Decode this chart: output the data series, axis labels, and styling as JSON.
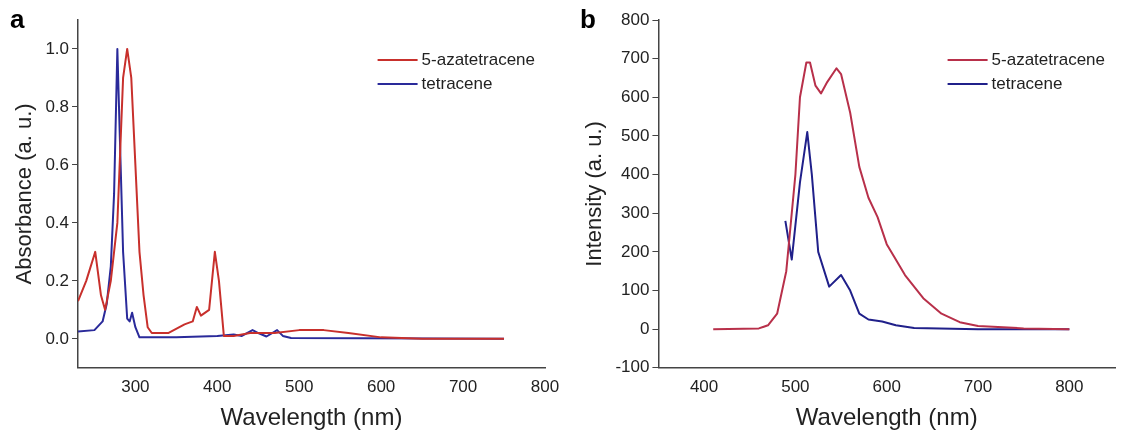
{
  "chart_data": [
    {
      "type": "line",
      "title": "a",
      "xlabel": "Wavelength (nm)",
      "ylabel": "Absorbance (a. u.)",
      "xlim": [
        230,
        800
      ],
      "xticks": [
        300,
        400,
        500,
        600,
        700,
        800
      ],
      "ylim": [
        -0.1,
        1.1
      ],
      "yticks": [
        {
          "value": 0,
          "label": "0.0"
        },
        0.2,
        0.4,
        0.6,
        0.8,
        {
          "value": 1,
          "label": "1.0"
        }
      ],
      "grid": false,
      "legend": "top right",
      "marker": "none",
      "line_style": "solid",
      "series": [
        {
          "name": "5-azatetracene",
          "color": "#c8302c",
          "x": [
            230,
            240,
            251,
            258,
            263,
            270,
            278,
            285,
            290,
            295,
            300,
            305,
            310,
            315,
            320,
            340,
            360,
            370,
            375,
            380,
            390,
            397,
            402,
            408,
            420,
            440,
            470,
            500,
            530,
            560,
            600,
            650,
            750
          ],
          "values": [
            0.13,
            0.2,
            0.3,
            0.15,
            0.1,
            0.2,
            0.4,
            0.9,
            1.0,
            0.9,
            0.6,
            0.3,
            0.15,
            0.04,
            0.02,
            0.02,
            0.05,
            0.06,
            0.11,
            0.08,
            0.1,
            0.3,
            0.2,
            0.01,
            0.01,
            0.02,
            0.02,
            0.03,
            0.03,
            0.02,
            0.005,
            0,
            0
          ]
        },
        {
          "name": "tetracene",
          "color": "#2a2a9a",
          "x": [
            230,
            250,
            260,
            265,
            270,
            274,
            278,
            282,
            285,
            290,
            293,
            296,
            300,
            305,
            350,
            400,
            420,
            430,
            443,
            450,
            460,
            473,
            480,
            490,
            750
          ],
          "values": [
            0.025,
            0.03,
            0.06,
            0.12,
            0.25,
            0.5,
            1.0,
            0.6,
            0.3,
            0.07,
            0.06,
            0.09,
            0.04,
            0.005,
            0.005,
            0.01,
            0.015,
            0.01,
            0.03,
            0.02,
            0.008,
            0.03,
            0.01,
            0.003,
            0
          ]
        }
      ]
    },
    {
      "type": "line",
      "title": "b",
      "xlabel": "Wavelength (nm)",
      "ylabel": "Intensity (a. u.)",
      "xlim": [
        350,
        850
      ],
      "xticks": [
        400,
        500,
        600,
        700,
        800
      ],
      "ylim": [
        -100,
        800
      ],
      "yticks": [
        -100,
        0,
        100,
        200,
        300,
        400,
        500,
        600,
        700,
        800
      ],
      "grid": false,
      "legend": "top right",
      "marker": "none",
      "line_style": "solid",
      "series": [
        {
          "name": "5-azatetracene",
          "color": "#b8304a",
          "x": [
            410,
            460,
            470,
            480,
            490,
            500,
            505,
            512,
            516,
            522,
            528,
            535,
            545,
            550,
            560,
            570,
            580,
            590,
            600,
            620,
            640,
            660,
            680,
            700,
            750,
            800
          ],
          "values": [
            0,
            2,
            10,
            40,
            150,
            400,
            600,
            690,
            690,
            630,
            610,
            640,
            675,
            660,
            560,
            420,
            340,
            290,
            220,
            140,
            80,
            40,
            18,
            8,
            2,
            0
          ]
        },
        {
          "name": "tetracene",
          "color": "#20208a",
          "x": [
            489,
            496,
            505,
            513,
            518,
            525,
            537,
            550,
            560,
            570,
            580,
            595,
            610,
            630,
            700,
            800
          ],
          "values": [
            280,
            180,
            380,
            510,
            400,
            200,
            110,
            140,
            100,
            40,
            25,
            20,
            10,
            3,
            0,
            0
          ]
        }
      ]
    }
  ]
}
